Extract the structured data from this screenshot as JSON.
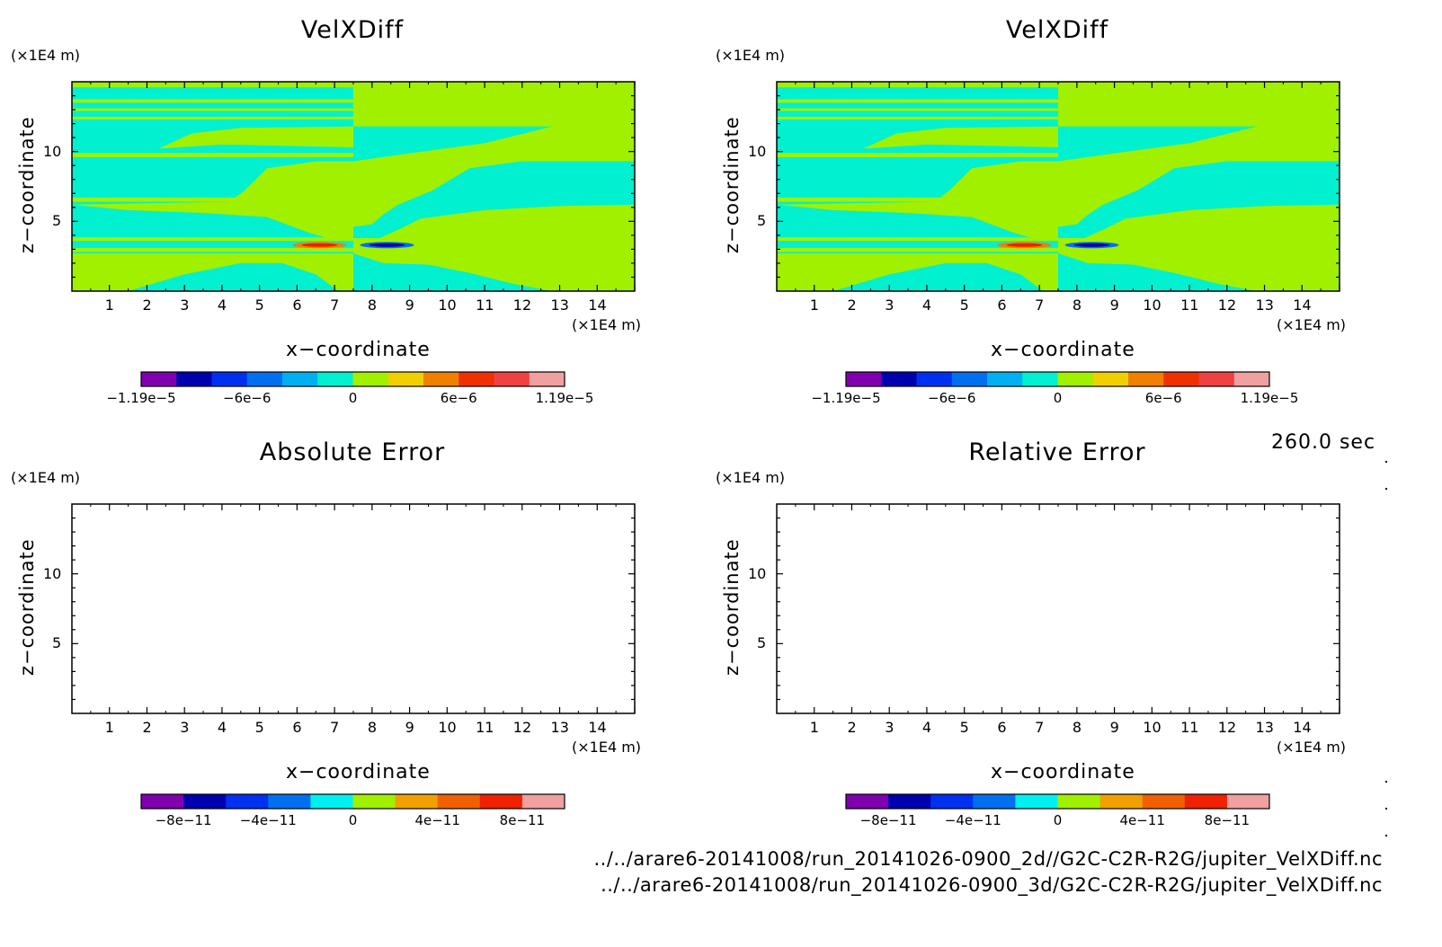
{
  "panels": [
    {
      "title": "VelXDiff",
      "kind": "field",
      "x_unit": "(×1E4 m)",
      "y_unit": "(×1E4 m)",
      "xlabel": "x−coordinate",
      "ylabel": "z−coordinate",
      "colorbar": {
        "colors": [
          "#8000b0",
          "#0000b0",
          "#0030f0",
          "#0070f0",
          "#00b0f0",
          "#00f0d0",
          "#a0f000",
          "#f0d000",
          "#f08000",
          "#f03000",
          "#f04040",
          "#f0a0a0"
        ],
        "labels": [
          "−1.19e−5",
          "−6e−6",
          "0",
          "6e−6",
          "1.19e−5"
        ]
      }
    },
    {
      "title": "VelXDiff",
      "kind": "field",
      "x_unit": "(×1E4 m)",
      "y_unit": "(×1E4 m)",
      "xlabel": "x−coordinate",
      "ylabel": "z−coordinate",
      "colorbar": {
        "colors": [
          "#8000b0",
          "#0000b0",
          "#0030f0",
          "#0070f0",
          "#00b0f0",
          "#00f0d0",
          "#a0f000",
          "#f0d000",
          "#f08000",
          "#f03000",
          "#f04040",
          "#f0a0a0"
        ],
        "labels": [
          "−1.19e−5",
          "−6e−6",
          "0",
          "6e−6",
          "1.19e−5"
        ]
      }
    },
    {
      "title": "Absolute Error",
      "kind": "empty",
      "x_unit": "(×1E4 m)",
      "y_unit": "(×1E4 m)",
      "xlabel": "x−coordinate",
      "ylabel": "z−coordinate",
      "colorbar": {
        "colors": [
          "#8000b0",
          "#0000b0",
          "#0030f0",
          "#0070f0",
          "#00f0f0",
          "#a0f000",
          "#f0a000",
          "#f06000",
          "#f02000",
          "#f0a0a0"
        ],
        "labels": [
          "−8e−11",
          "−4e−11",
          "0",
          "4e−11",
          "8e−11"
        ]
      }
    },
    {
      "title": "Relative Error",
      "kind": "empty",
      "x_unit": "(×1E4 m)",
      "y_unit": "(×1E4 m)",
      "xlabel": "x−coordinate",
      "ylabel": "z−coordinate",
      "colorbar": {
        "colors": [
          "#8000b0",
          "#0000b0",
          "#0030f0",
          "#0070f0",
          "#00f0f0",
          "#a0f000",
          "#f0a000",
          "#f06000",
          "#f02000",
          "#f0a0a0"
        ],
        "labels": [
          "−8e−11",
          "−4e−11",
          "0",
          "4e−11",
          "8e−11"
        ]
      }
    }
  ],
  "chart_data": [
    {
      "type": "heatmap",
      "title": "VelXDiff",
      "xlabel": "x−coordinate",
      "ylabel": "z−coordinate",
      "x_ticks": [
        "1",
        "2",
        "3",
        "4",
        "5",
        "6",
        "7",
        "8",
        "9",
        "10",
        "11",
        "12",
        "13",
        "14"
      ],
      "y_ticks": [
        "5",
        "10"
      ],
      "xlim": [
        0,
        15
      ],
      "ylim": [
        0,
        15
      ],
      "color_scale": {
        "min": -1.19e-05,
        "max": 1.19e-05,
        "labels": [
          "−1.19e−5",
          "−6e−6",
          "0",
          "6e−6",
          "1.19e−5"
        ]
      },
      "extremes": {
        "max_near": [
          6.6,
          3.3
        ],
        "min_near": [
          8.4,
          3.3
        ]
      }
    },
    {
      "type": "heatmap",
      "title": "VelXDiff",
      "xlabel": "x−coordinate",
      "ylabel": "z−coordinate",
      "x_ticks": [
        "1",
        "2",
        "3",
        "4",
        "5",
        "6",
        "7",
        "8",
        "9",
        "10",
        "11",
        "12",
        "13",
        "14"
      ],
      "y_ticks": [
        "5",
        "10"
      ],
      "xlim": [
        0,
        15
      ],
      "ylim": [
        0,
        15
      ],
      "color_scale": {
        "min": -1.19e-05,
        "max": 1.19e-05,
        "labels": [
          "−1.19e−5",
          "−6e−6",
          "0",
          "6e−6",
          "1.19e−5"
        ]
      },
      "extremes": {
        "max_near": [
          6.6,
          3.3
        ],
        "min_near": [
          8.4,
          3.3
        ]
      }
    },
    {
      "type": "heatmap",
      "title": "Absolute Error",
      "xlabel": "x−coordinate",
      "ylabel": "z−coordinate",
      "x_ticks": [
        "1",
        "2",
        "3",
        "4",
        "5",
        "6",
        "7",
        "8",
        "9",
        "10",
        "11",
        "12",
        "13",
        "14"
      ],
      "y_ticks": [
        "5",
        "10"
      ],
      "xlim": [
        0,
        15
      ],
      "ylim": [
        0,
        15
      ],
      "color_scale": {
        "min": -1e-10,
        "max": 1e-10,
        "labels": [
          "−8e−11",
          "−4e−11",
          "0",
          "4e−11",
          "8e−11"
        ]
      },
      "values": []
    },
    {
      "type": "heatmap",
      "title": "Relative Error",
      "xlabel": "x−coordinate",
      "ylabel": "z−coordinate",
      "x_ticks": [
        "1",
        "2",
        "3",
        "4",
        "5",
        "6",
        "7",
        "8",
        "9",
        "10",
        "11",
        "12",
        "13",
        "14"
      ],
      "y_ticks": [
        "5",
        "10"
      ],
      "xlim": [
        0,
        15
      ],
      "ylim": [
        0,
        15
      ],
      "color_scale": {
        "min": -1e-10,
        "max": 1e-10,
        "labels": [
          "−8e−11",
          "−4e−11",
          "0",
          "4e−11",
          "8e−11"
        ]
      },
      "values": []
    }
  ],
  "time_label": "260.0 sec",
  "file_paths": [
    "../../arare6-20141008/run_20141026-0900_2d//G2C-C2R-R2G/jupiter_VelXDiff.nc",
    "../../arare6-20141008/run_20141026-0900_3d/G2C-C2R-R2G/jupiter_VelXDiff.nc"
  ],
  "colors": {
    "cyan_field": "#00f0d0",
    "green_field": "#a0f000"
  }
}
